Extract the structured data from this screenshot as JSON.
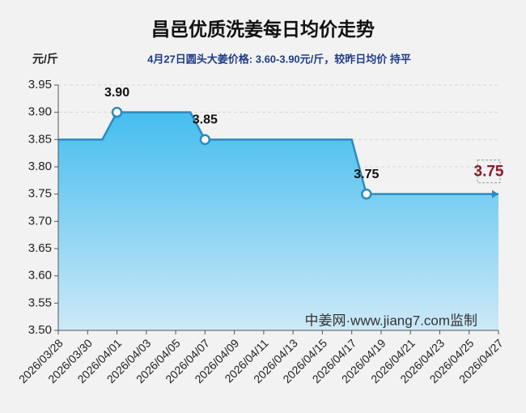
{
  "chart_data": {
    "type": "area",
    "title": "昌邑优质洗姜每日均价走势",
    "y_label": "元/斤",
    "subtitle": "4月27日圆头大姜价格: 3.60-3.90元/斤，较昨日均价 持平",
    "watermark": "中姜网·www.jiang7.com监制",
    "categories": [
      "2026/03/28",
      null,
      "2026/03/30",
      null,
      "2026/04/01",
      null,
      "2026/04/03",
      null,
      "2026/04/05",
      null,
      "2026/04/07",
      null,
      "2026/04/09",
      null,
      "2026/04/11",
      null,
      "2026/04/13",
      null,
      "2026/04/15",
      null,
      "2026/04/17",
      null,
      "2026/04/19",
      null,
      "2026/04/21",
      null,
      "2026/04/23",
      null,
      "2026/04/25",
      null,
      "2026/04/27"
    ],
    "values": [
      3.85,
      3.85,
      3.85,
      3.85,
      3.9,
      3.9,
      3.9,
      3.9,
      3.9,
      3.9,
      3.85,
      3.85,
      3.85,
      3.85,
      3.85,
      3.85,
      3.85,
      3.85,
      3.85,
      3.85,
      3.85,
      3.75,
      3.75,
      3.75,
      3.75,
      3.75,
      3.75,
      3.75,
      3.75,
      3.75,
      3.75
    ],
    "value_labels": [
      null,
      null,
      null,
      null,
      "3.90",
      null,
      null,
      null,
      null,
      null,
      "3.85",
      null,
      null,
      null,
      null,
      null,
      null,
      null,
      null,
      null,
      null,
      "3.75",
      null,
      null,
      null,
      null,
      null,
      null,
      null,
      null,
      "3.75"
    ],
    "color": "#2a8bbf",
    "ylim": [
      3.5,
      3.95
    ],
    "yticks": [
      {
        "value": 3.5,
        "label": "3.50"
      },
      3.55,
      {
        "value": 3.6,
        "label": "3.60"
      },
      3.65,
      {
        "value": 3.7,
        "label": "3.70"
      },
      3.75,
      {
        "value": 3.8,
        "label": "3.80"
      },
      3.85,
      {
        "value": 3.9,
        "label": "3.90"
      },
      3.95
    ],
    "grid": true
  }
}
